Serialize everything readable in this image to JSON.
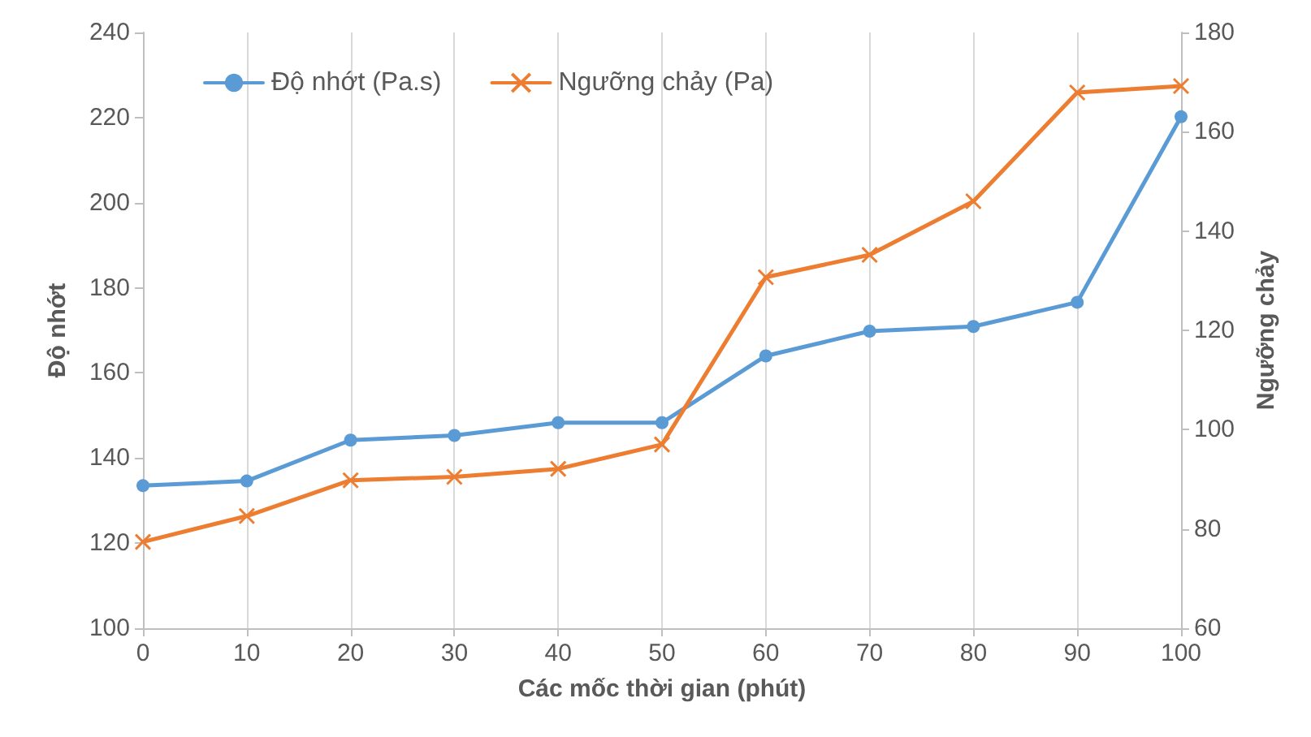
{
  "chart_data": {
    "type": "line",
    "xlabel": "Các mốc thời gian (phút)",
    "ylabel": "Độ nhớt",
    "y2label": "Ngưỡng chảy",
    "x": [
      0,
      10,
      20,
      30,
      40,
      50,
      60,
      70,
      80,
      90,
      100
    ],
    "series": [
      {
        "name": "Độ nhớt (Pa.s)",
        "color": "#5b9bd5",
        "marker": "circle",
        "values": [
          133.5,
          134.6,
          144.2,
          145.3,
          148.3,
          148.3,
          164,
          169.8,
          170.9,
          176.6,
          220.2
        ]
      },
      {
        "name": "Ngưỡng chảy (Pa)",
        "color": "#ed7d31",
        "marker": "cross",
        "axis": "y2",
        "values": [
          77.4,
          82.6,
          89.8,
          90.5,
          92.1,
          97,
          130.7,
          135.2,
          146,
          167.9,
          169.2
        ]
      }
    ],
    "xlim": [
      0,
      100
    ],
    "xticks": [
      0,
      10,
      20,
      30,
      40,
      50,
      60,
      70,
      80,
      90,
      100
    ],
    "ylim": [
      100,
      240
    ],
    "yticks": [
      100,
      120,
      140,
      160,
      180,
      200,
      220,
      240
    ],
    "y2lim": [
      60,
      180
    ],
    "y2ticks": [
      60,
      80,
      100,
      120,
      140,
      160,
      180
    ],
    "grid": "x",
    "legend": "top left",
    "line_style": "solid"
  }
}
